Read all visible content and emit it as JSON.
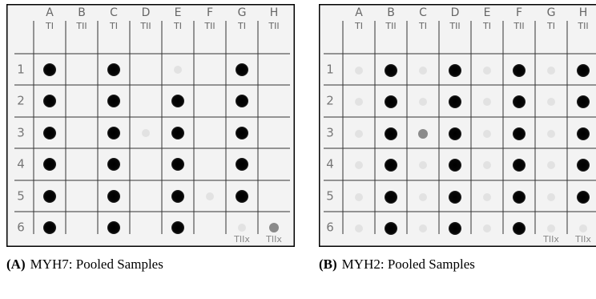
{
  "panels": [
    {
      "columns": [
        {
          "letter": "A",
          "type": "TI"
        },
        {
          "letter": "B",
          "type": "TII"
        },
        {
          "letter": "C",
          "type": "TI"
        },
        {
          "letter": "D",
          "type": "TII"
        },
        {
          "letter": "E",
          "type": "TI"
        },
        {
          "letter": "F",
          "type": "TII"
        },
        {
          "letter": "G",
          "type": "TI"
        },
        {
          "letter": "H",
          "type": "TII"
        }
      ],
      "rows": [
        "1",
        "2",
        "3",
        "4",
        "5",
        "6"
      ],
      "cell_notes": [
        {
          "row": 5,
          "col": 6,
          "text": "TIIx"
        },
        {
          "row": 5,
          "col": 7,
          "text": "TIIx"
        }
      ],
      "caption": {
        "label": "(A)",
        "text": "MYH7: Pooled Samples"
      }
    },
    {
      "columns": [
        {
          "letter": "A",
          "type": "TI"
        },
        {
          "letter": "B",
          "type": "TII"
        },
        {
          "letter": "C",
          "type": "TI"
        },
        {
          "letter": "D",
          "type": "TII"
        },
        {
          "letter": "E",
          "type": "TI"
        },
        {
          "letter": "F",
          "type": "TII"
        },
        {
          "letter": "G",
          "type": "TI"
        },
        {
          "letter": "H",
          "type": "TII"
        }
      ],
      "rows": [
        "1",
        "2",
        "3",
        "4",
        "5",
        "6"
      ],
      "cell_notes": [
        {
          "row": 5,
          "col": 6,
          "text": "TIIx"
        },
        {
          "row": 5,
          "col": 7,
          "text": "TIIx"
        }
      ],
      "caption": {
        "label": "(B)",
        "text": "MYH2: Pooled Samples"
      }
    }
  ]
}
